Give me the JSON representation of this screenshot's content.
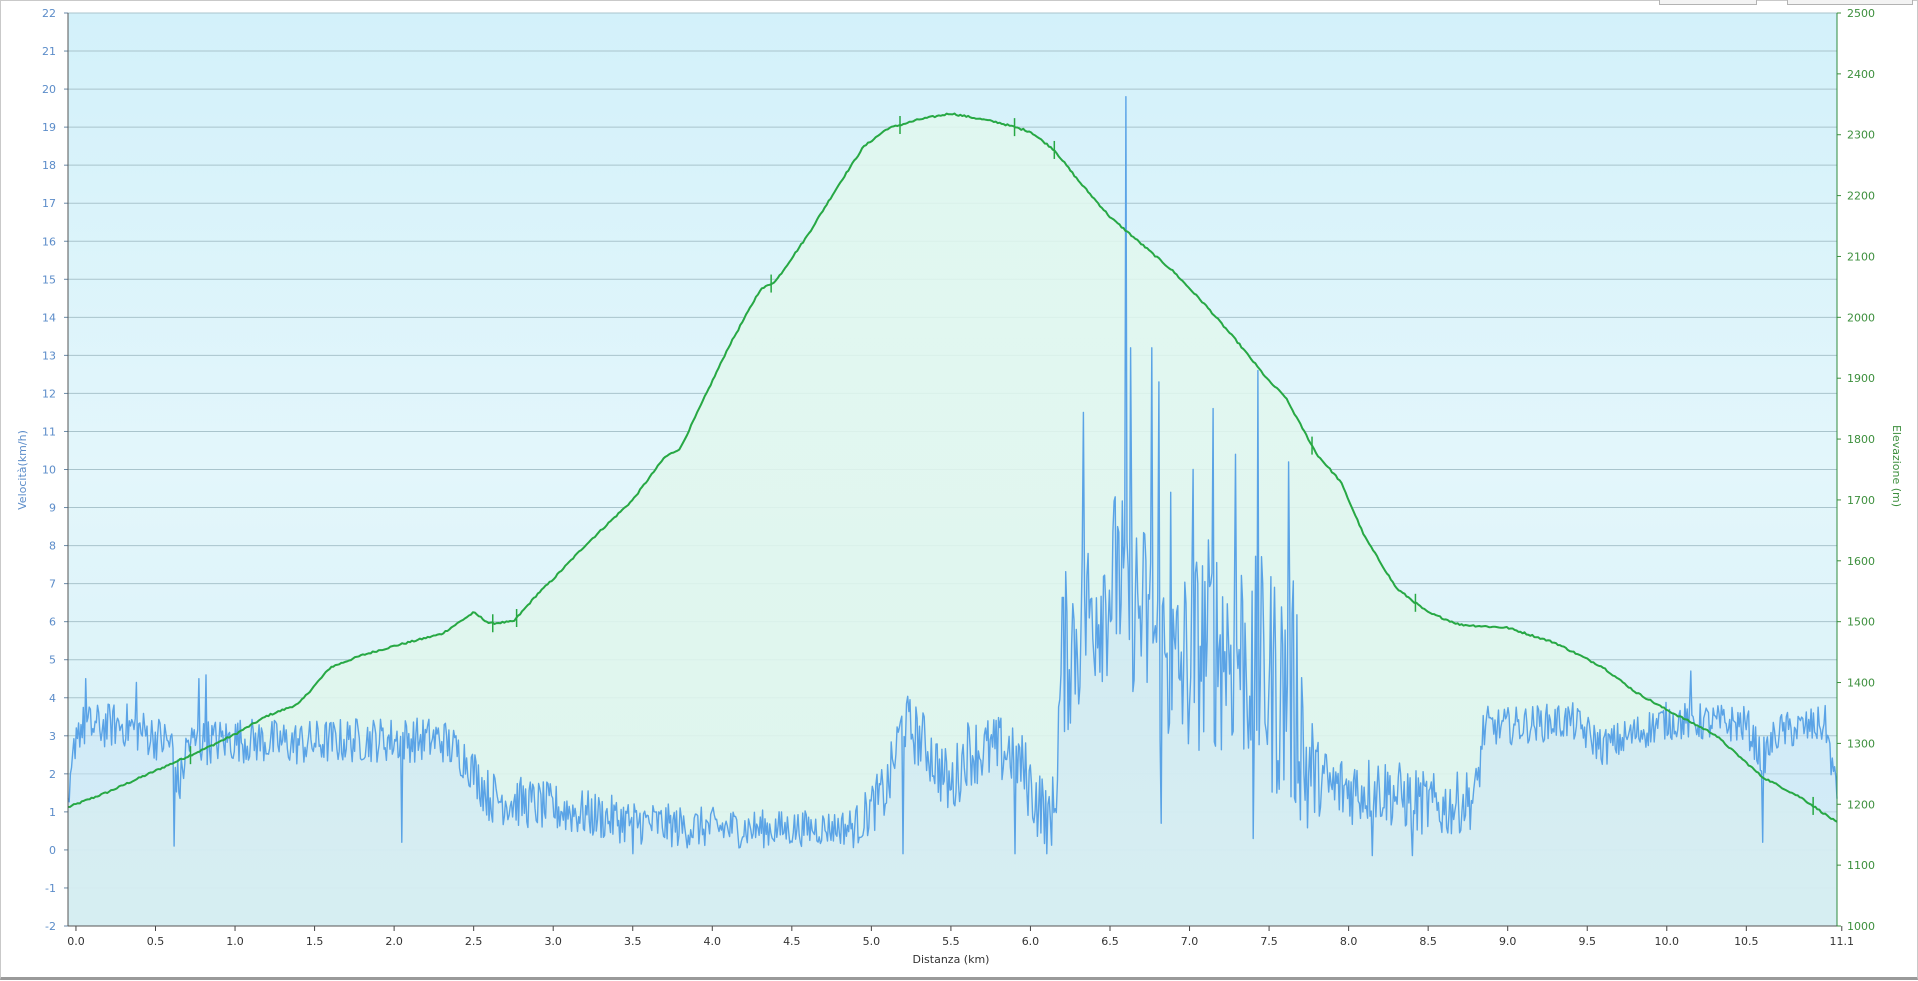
{
  "chart_data": {
    "type": "area",
    "xlabel": "Distanza  (km)",
    "x_ticks": [
      "0.0",
      "0.5",
      "1.0",
      "1.5",
      "2.0",
      "2.5",
      "3.0",
      "3.5",
      "4.0",
      "4.5",
      "5.0",
      "5.5",
      "6.0",
      "6.5",
      "7.0",
      "7.5",
      "8.0",
      "8.5",
      "9.0",
      "9.5",
      "10.0",
      "10.5",
      "11.1"
    ],
    "xlim": [
      -0.05,
      11.07
    ],
    "left_axis": {
      "label": "Velocità(km/h)",
      "ylim": [
        -2,
        22
      ],
      "ticks": [
        "-2",
        "-1",
        "0",
        "1",
        "2",
        "3",
        "4",
        "5",
        "6",
        "7",
        "8",
        "9",
        "10",
        "11",
        "12",
        "13",
        "14",
        "15",
        "16",
        "17",
        "18",
        "19",
        "20",
        "21",
        "22"
      ]
    },
    "right_axis": {
      "label": "Elevazione (m)",
      "ylim": [
        1000,
        2500
      ],
      "ticks": [
        "1000",
        "1100",
        "1200",
        "1300",
        "1400",
        "1500",
        "1600",
        "1700",
        "1800",
        "1900",
        "2000",
        "2100",
        "2200",
        "2300",
        "2400",
        "2500"
      ]
    },
    "grid": true,
    "colors": {
      "speed": "#5aa3e6",
      "elevation": "#27a844",
      "left_axis_text": "#5b8cc9",
      "right_axis_text": "#3d8f3d"
    },
    "series": [
      {
        "key": "elevation",
        "axis": "right",
        "points": [
          [
            -0.05,
            1195
          ],
          [
            0.2,
            1220
          ],
          [
            0.5,
            1255
          ],
          [
            0.8,
            1290
          ],
          [
            1.0,
            1315
          ],
          [
            1.2,
            1345
          ],
          [
            1.4,
            1365
          ],
          [
            1.6,
            1425
          ],
          [
            1.8,
            1445
          ],
          [
            2.0,
            1460
          ],
          [
            2.3,
            1480
          ],
          [
            2.5,
            1515
          ],
          [
            2.6,
            1497
          ],
          [
            2.75,
            1500
          ],
          [
            2.9,
            1545
          ],
          [
            3.0,
            1570
          ],
          [
            3.2,
            1625
          ],
          [
            3.5,
            1700
          ],
          [
            3.7,
            1770
          ],
          [
            3.8,
            1785
          ],
          [
            3.9,
            1840
          ],
          [
            4.1,
            1950
          ],
          [
            4.3,
            2045
          ],
          [
            4.4,
            2060
          ],
          [
            4.6,
            2135
          ],
          [
            4.8,
            2220
          ],
          [
            4.95,
            2280
          ],
          [
            5.1,
            2310
          ],
          [
            5.3,
            2325
          ],
          [
            5.5,
            2335
          ],
          [
            5.6,
            2330
          ],
          [
            5.8,
            2320
          ],
          [
            6.0,
            2305
          ],
          [
            6.15,
            2275
          ],
          [
            6.3,
            2225
          ],
          [
            6.5,
            2165
          ],
          [
            6.7,
            2120
          ],
          [
            6.9,
            2075
          ],
          [
            7.1,
            2020
          ],
          [
            7.3,
            1960
          ],
          [
            7.5,
            1895
          ],
          [
            7.6,
            1870
          ],
          [
            7.8,
            1775
          ],
          [
            7.95,
            1730
          ],
          [
            8.1,
            1640
          ],
          [
            8.3,
            1555
          ],
          [
            8.5,
            1515
          ],
          [
            8.7,
            1495
          ],
          [
            9.0,
            1490
          ],
          [
            9.3,
            1465
          ],
          [
            9.6,
            1425
          ],
          [
            9.8,
            1385
          ],
          [
            10.0,
            1355
          ],
          [
            10.3,
            1315
          ],
          [
            10.6,
            1245
          ],
          [
            10.85,
            1210
          ],
          [
            11.07,
            1170
          ]
        ]
      },
      {
        "key": "speed",
        "axis": "left",
        "base": [
          [
            -0.05,
            0.8
          ],
          [
            0.0,
            3.2
          ],
          [
            0.3,
            3.3
          ],
          [
            0.6,
            2.8
          ],
          [
            0.65,
            1.6
          ],
          [
            0.7,
            2.8
          ],
          [
            1.0,
            2.9
          ],
          [
            1.4,
            2.8
          ],
          [
            1.8,
            2.9
          ],
          [
            2.3,
            2.9
          ],
          [
            2.45,
            2.4
          ],
          [
            2.6,
            1.4
          ],
          [
            3.0,
            1.1
          ],
          [
            3.4,
            0.8
          ],
          [
            3.8,
            0.6
          ],
          [
            4.4,
            0.55
          ],
          [
            4.9,
            0.6
          ],
          [
            5.1,
            1.6
          ],
          [
            5.2,
            3.4
          ],
          [
            5.35,
            2.7
          ],
          [
            5.5,
            1.6
          ],
          [
            5.6,
            2.6
          ],
          [
            5.9,
            2.6
          ],
          [
            6.05,
            1.2
          ],
          [
            6.15,
            1.0
          ],
          [
            6.2,
            5.0
          ],
          [
            6.4,
            6.5
          ],
          [
            6.55,
            7.2
          ],
          [
            6.7,
            6.2
          ],
          [
            6.9,
            4.5
          ],
          [
            7.1,
            5.5
          ],
          [
            7.3,
            5.3
          ],
          [
            7.5,
            4.5
          ],
          [
            7.7,
            3.8
          ],
          [
            7.72,
            2.2
          ],
          [
            7.9,
            1.6
          ],
          [
            8.2,
            1.6
          ],
          [
            8.4,
            1.3
          ],
          [
            8.6,
            1.1
          ],
          [
            8.8,
            1.4
          ],
          [
            8.85,
            3.2
          ],
          [
            9.4,
            3.4
          ],
          [
            9.6,
            2.7
          ],
          [
            10.0,
            3.4
          ],
          [
            10.5,
            3.3
          ],
          [
            10.6,
            2.4
          ],
          [
            10.7,
            3.1
          ],
          [
            11.0,
            3.3
          ],
          [
            11.07,
            1.4
          ]
        ],
        "noise": [
          [
            -0.05,
            0.6
          ],
          [
            2.5,
            0.6
          ],
          [
            2.6,
            0.7
          ],
          [
            4.8,
            0.45
          ],
          [
            5.1,
            0.8
          ],
          [
            6.15,
            1.0
          ],
          [
            6.2,
            2.2
          ],
          [
            7.7,
            3.2
          ],
          [
            7.8,
            1.0
          ],
          [
            8.8,
            0.8
          ],
          [
            8.9,
            0.5
          ],
          [
            11.07,
            0.5
          ]
        ],
        "peaks": [
          [
            0.06,
            4.5
          ],
          [
            0.38,
            4.4
          ],
          [
            0.77,
            4.5
          ],
          [
            0.82,
            4.6
          ],
          [
            5.2,
            4.1
          ],
          [
            6.33,
            11.5
          ],
          [
            6.55,
            8.5
          ],
          [
            6.6,
            19.8
          ],
          [
            6.63,
            13.2
          ],
          [
            6.72,
            8.3
          ],
          [
            6.76,
            13.2
          ],
          [
            6.81,
            12.3
          ],
          [
            6.88,
            9.4
          ],
          [
            7.02,
            10.0
          ],
          [
            7.15,
            11.6
          ],
          [
            7.29,
            10.4
          ],
          [
            7.43,
            12.6
          ],
          [
            7.62,
            10.2
          ],
          [
            10.15,
            4.7
          ]
        ],
        "dips": [
          [
            0.62,
            0.1
          ],
          [
            2.05,
            0.2
          ],
          [
            3.5,
            -0.1
          ],
          [
            5.2,
            -0.1
          ],
          [
            5.9,
            -0.1
          ],
          [
            6.1,
            -0.1
          ],
          [
            6.82,
            0.7
          ],
          [
            7.4,
            0.3
          ],
          [
            8.15,
            -0.15
          ],
          [
            8.4,
            -0.15
          ],
          [
            10.6,
            0.2
          ]
        ]
      }
    ]
  }
}
